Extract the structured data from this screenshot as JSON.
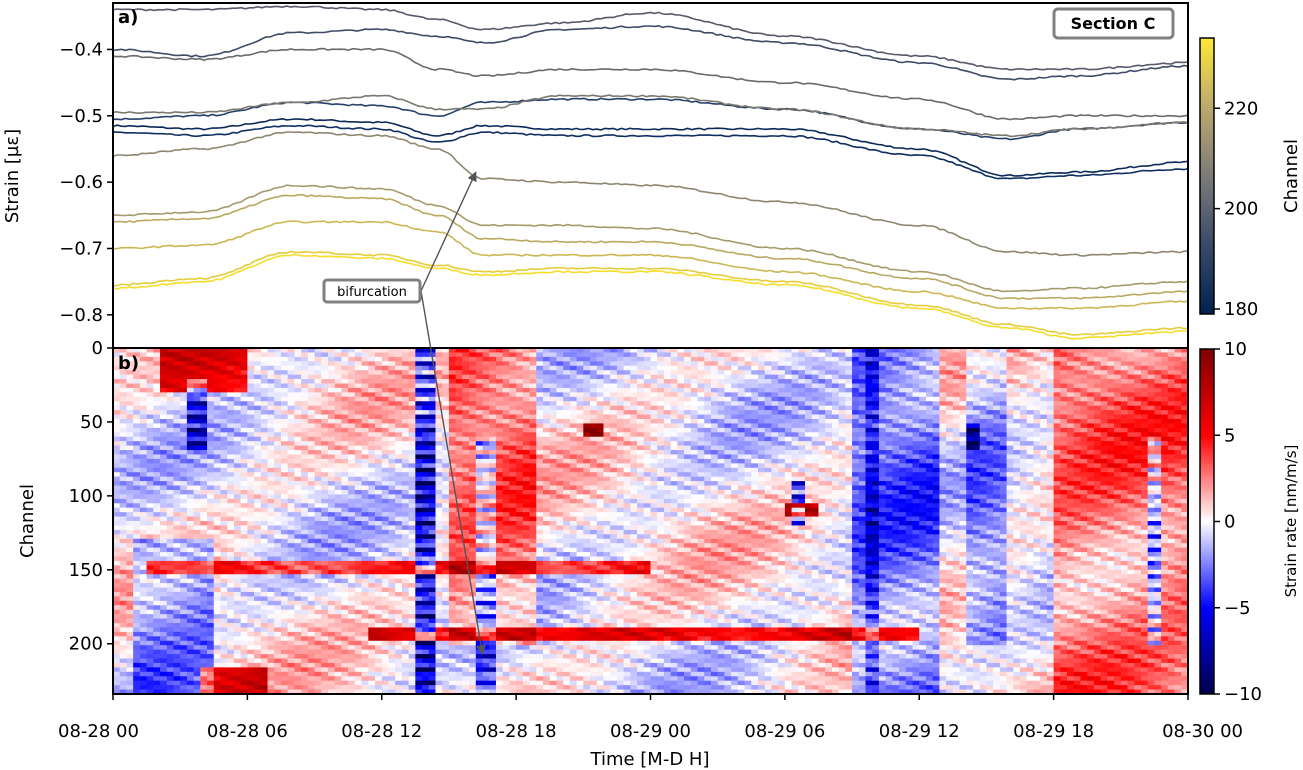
{
  "chart_data": [
    {
      "type": "line",
      "panel_label": "a)",
      "section_label": "Section C",
      "ylabel": "Strain [µε]",
      "ylim": [
        -0.85,
        -0.33
      ],
      "yticks": [
        -0.4,
        -0.5,
        -0.6,
        -0.7,
        -0.8
      ],
      "ytick_labels": [
        "−0.4",
        "−0.5",
        "−0.6",
        "−0.7",
        "−0.8"
      ],
      "x_hours": [
        0,
        4,
        8,
        12,
        14.5,
        16.5,
        20,
        24,
        30,
        36,
        40,
        43,
        48
      ],
      "series": [
        {
          "channel": 182,
          "color": "#0b2a5a",
          "values": [
            -0.515,
            -0.52,
            -0.505,
            -0.51,
            -0.53,
            -0.515,
            -0.52,
            -0.52,
            -0.52,
            -0.55,
            -0.59,
            -0.585,
            -0.57
          ]
        },
        {
          "channel": 184,
          "color": "#0f2f62",
          "values": [
            -0.525,
            -0.53,
            -0.515,
            -0.52,
            -0.54,
            -0.525,
            -0.53,
            -0.53,
            -0.53,
            -0.56,
            -0.595,
            -0.59,
            -0.58
          ]
        },
        {
          "channel": 187,
          "color": "#26406a",
          "values": [
            -0.505,
            -0.5,
            -0.48,
            -0.485,
            -0.5,
            -0.48,
            -0.475,
            -0.475,
            -0.49,
            -0.52,
            -0.535,
            -0.52,
            -0.51
          ]
        },
        {
          "channel": 192,
          "color": "#404b66",
          "values": [
            -0.4,
            -0.41,
            -0.375,
            -0.37,
            -0.38,
            -0.39,
            -0.37,
            -0.365,
            -0.39,
            -0.42,
            -0.445,
            -0.44,
            -0.425
          ]
        },
        {
          "channel": 196,
          "color": "#565a6b",
          "values": [
            -0.34,
            -0.34,
            -0.335,
            -0.34,
            -0.355,
            -0.37,
            -0.36,
            -0.345,
            -0.38,
            -0.41,
            -0.43,
            -0.43,
            -0.42
          ]
        },
        {
          "channel": 201,
          "color": "#6a6a6e",
          "values": [
            -0.41,
            -0.415,
            -0.4,
            -0.4,
            -0.43,
            -0.44,
            -0.43,
            -0.43,
            -0.45,
            -0.475,
            -0.505,
            -0.5,
            -0.5
          ]
        },
        {
          "channel": 205,
          "color": "#7c7870",
          "values": [
            -0.495,
            -0.495,
            -0.48,
            -0.47,
            -0.49,
            -0.49,
            -0.47,
            -0.47,
            -0.49,
            -0.52,
            -0.53,
            -0.52,
            -0.51
          ]
        },
        {
          "channel": 210,
          "color": "#8e8770",
          "values": [
            -0.56,
            -0.55,
            -0.525,
            -0.53,
            -0.55,
            -0.595,
            -0.6,
            -0.605,
            -0.63,
            -0.665,
            -0.705,
            -0.71,
            -0.705
          ]
        },
        {
          "channel": 215,
          "color": "#a59a6a",
          "values": [
            -0.65,
            -0.645,
            -0.605,
            -0.61,
            -0.635,
            -0.665,
            -0.665,
            -0.67,
            -0.7,
            -0.735,
            -0.765,
            -0.76,
            -0.75
          ]
        },
        {
          "channel": 220,
          "color": "#b9a960",
          "values": [
            -0.66,
            -0.655,
            -0.62,
            -0.625,
            -0.65,
            -0.685,
            -0.69,
            -0.69,
            -0.715,
            -0.745,
            -0.775,
            -0.775,
            -0.765
          ]
        },
        {
          "channel": 225,
          "color": "#cdb752",
          "values": [
            -0.7,
            -0.695,
            -0.66,
            -0.66,
            -0.675,
            -0.71,
            -0.71,
            -0.71,
            -0.735,
            -0.765,
            -0.79,
            -0.79,
            -0.78
          ]
        },
        {
          "channel": 230,
          "color": "#e6cc3a",
          "values": [
            -0.755,
            -0.745,
            -0.705,
            -0.71,
            -0.725,
            -0.735,
            -0.73,
            -0.73,
            -0.75,
            -0.785,
            -0.815,
            -0.83,
            -0.82
          ]
        },
        {
          "channel": 232,
          "color": "#f7dd2a",
          "values": [
            -0.76,
            -0.75,
            -0.71,
            -0.715,
            -0.73,
            -0.74,
            -0.735,
            -0.735,
            -0.755,
            -0.79,
            -0.82,
            -0.835,
            -0.825
          ]
        }
      ],
      "colorbar": {
        "label": "Channel",
        "ticks": [
          180,
          200,
          220
        ],
        "range": [
          179,
          234
        ],
        "colors": [
          "#00224e",
          "#3a4a6b",
          "#7c7b78",
          "#bca96e",
          "#fee838"
        ]
      },
      "annotation": {
        "text": "bifurcation",
        "arrow_targets": [
          {
            "x_hours": 16.2,
            "y": -0.585
          },
          {
            "panel": "b",
            "x_hours": 16.5,
            "channel": 207
          }
        ]
      }
    },
    {
      "type": "heatmap",
      "panel_label": "b)",
      "ylabel": "Channel",
      "xlabel": "Time [M-D H]",
      "ylim": [
        234,
        0
      ],
      "yticks": [
        0,
        50,
        100,
        150,
        200
      ],
      "ytick_labels": [
        "0",
        "50",
        "100",
        "150",
        "200"
      ],
      "xlim_hours": [
        0,
        48
      ],
      "xticks_hours": [
        0,
        6,
        12,
        18,
        24,
        30,
        36,
        42,
        48
      ],
      "xtick_labels": [
        "08-28 00",
        "08-28 06",
        "08-28 12",
        "08-28 18",
        "08-29 00",
        "08-29 06",
        "08-29 12",
        "08-29 18",
        "08-30 00"
      ],
      "colorbar": {
        "label": "Strain rate [nm/m/s]",
        "ticks": [
          10,
          5,
          0,
          -5,
          -10
        ],
        "tick_labels": [
          "10",
          "5",
          "0",
          "−5",
          "−10"
        ],
        "range": [
          -10,
          10
        ],
        "colors": [
          "#00004c",
          "#0000ff",
          "#ffffff",
          "#ff0000",
          "#7f0000"
        ]
      },
      "features": {
        "vertical_events": [
          {
            "t": 3.7,
            "c": [
              20,
              70
            ],
            "v": -7
          },
          {
            "t": 13.9,
            "c": [
              0,
              234
            ],
            "v": -9
          },
          {
            "t": 16.6,
            "c": [
              60,
              234
            ],
            "v": -6
          },
          {
            "t": 30.6,
            "c": [
              90,
              120
            ],
            "v": -8
          },
          {
            "t": 34,
            "c": [
              0,
              234
            ],
            "v": -4
          },
          {
            "t": 38.5,
            "c": [
              50,
              70
            ],
            "v": -9
          },
          {
            "t": 46.5,
            "c": [
              60,
              200
            ],
            "v": -6
          }
        ],
        "horizontal_bands": [
          {
            "c": 148,
            "t": [
              1.5,
              24
            ],
            "v": 5
          },
          {
            "c": 193,
            "t": [
              11.5,
              36
            ],
            "v": 6
          },
          {
            "c": 110,
            "t": [
              30,
              31.5
            ],
            "v": 7
          },
          {
            "c": 55,
            "t": [
              21,
              22
            ],
            "v": 8
          }
        ],
        "warm_regions": [
          {
            "t": [
              2,
              6
            ],
            "c": [
              0,
              30
            ],
            "v": 8
          },
          {
            "t": [
              15,
              19
            ],
            "c": [
              0,
              200
            ],
            "v": 4
          },
          {
            "t": [
              42,
              48
            ],
            "c": [
              0,
              234
            ],
            "v": 4
          },
          {
            "t": [
              4,
              7
            ],
            "c": [
              215,
              234
            ],
            "v": 8
          }
        ],
        "cool_regions": [
          {
            "t": [
              1,
              4.5
            ],
            "c": [
              130,
              234
            ],
            "v": -4
          },
          {
            "t": [
              33,
              37
            ],
            "c": [
              0,
              234
            ],
            "v": -4
          },
          {
            "t": [
              38,
              40
            ],
            "c": [
              0,
              200
            ],
            "v": -3
          }
        ]
      }
    }
  ]
}
